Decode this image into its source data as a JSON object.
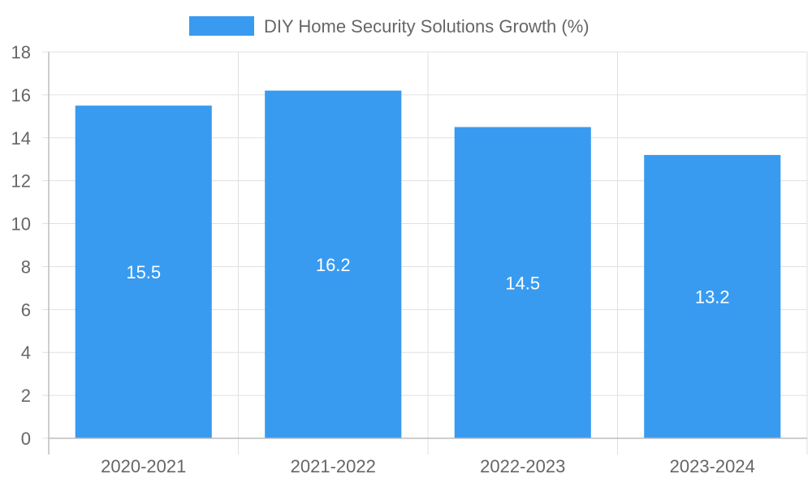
{
  "chart_data": {
    "type": "bar",
    "categories": [
      "2020-2021",
      "2021-2022",
      "2022-2023",
      "2023-2024"
    ],
    "series": [
      {
        "name": "DIY Home Security Solutions Growth (%)",
        "values": [
          15.5,
          16.2,
          14.5,
          13.2
        ]
      }
    ],
    "ylim": [
      0,
      18
    ],
    "yticks": [
      0,
      2,
      4,
      6,
      8,
      10,
      12,
      14,
      16,
      18
    ],
    "grid": true,
    "legend_position": "top",
    "data_labels": [
      "15.5",
      "16.2",
      "14.5",
      "13.2"
    ],
    "colors": {
      "bar": "#389BF0",
      "grid": "#E0E0E0",
      "axis": "#BDBDBD",
      "tick_text": "#666666",
      "label_text": "#FFFFFF"
    }
  }
}
